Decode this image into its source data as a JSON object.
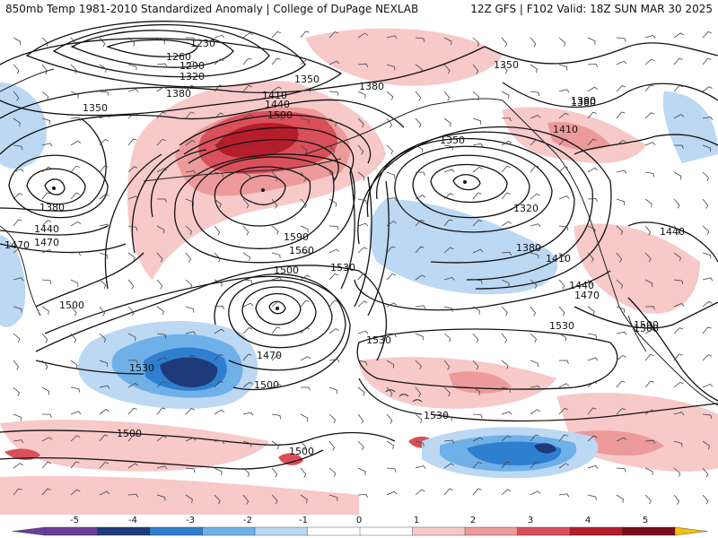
{
  "header": {
    "left": "850mb Temp 1981-2010 Standardized Anomaly | College of DuPage NEXLAB",
    "right": "12Z GFS | F102 Valid: 18Z SUN MAR 30 2025"
  },
  "colors": {
    "neg5": "#6a3d9a",
    "neg4": "#1e3a7a",
    "neg3": "#2f7fd0",
    "neg2": "#6fb0e8",
    "neg1": "#bcd8f2",
    "pos1": "#f7c9c9",
    "pos2": "#ec9a9a",
    "pos3": "#d9505a",
    "pos4": "#b51d2a",
    "pos5": "#7a0c1a",
    "over": "#f2c20a",
    "contour": "#111111",
    "coast": "#222222"
  },
  "colorbar": {
    "ticks": [
      "-5",
      "-4",
      "-3",
      "-2",
      "-1",
      "0",
      "1",
      "2",
      "3",
      "4",
      "5"
    ]
  },
  "contours": {
    "labels": [
      "1230",
      "1260",
      "1290",
      "1320",
      "1350",
      "1350",
      "1380",
      "1380",
      "1380",
      "1410",
      "1440",
      "1500",
      "1590",
      "1560",
      "1530",
      "1500",
      "1470",
      "1440",
      "1470",
      "1500",
      "1530",
      "1500",
      "1470",
      "1530",
      "1500",
      "1530",
      "1500",
      "1500",
      "1350",
      "1320",
      "1380",
      "1410",
      "1440",
      "1470",
      "1500",
      "1530",
      "1380",
      "1350",
      "1380",
      "1410",
      "1440"
    ]
  }
}
